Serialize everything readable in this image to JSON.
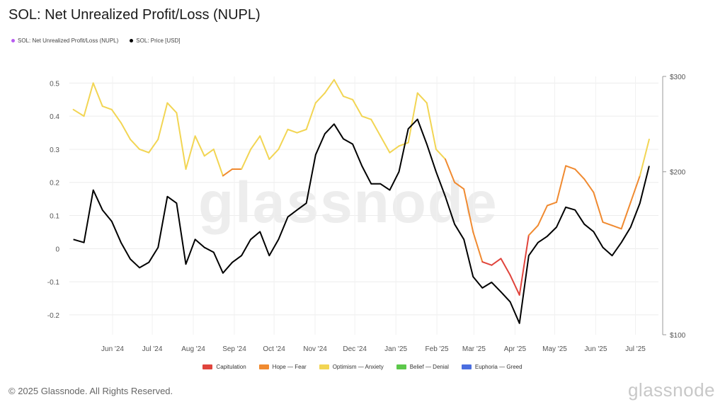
{
  "title": "SOL: Net Unrealized Profit/Loss (NUPL)",
  "legend_top": [
    {
      "label": "SOL: Net Unrealized Profit/Loss (NUPL)",
      "color": "#b85cf0"
    },
    {
      "label": "SOL: Price [USD]",
      "color": "#000000"
    }
  ],
  "legend_bottom": [
    {
      "label": "Capitulation",
      "color": "#e0443c"
    },
    {
      "label": "Hope — Fear",
      "color": "#f08a30"
    },
    {
      "label": "Optimism — Anxiety",
      "color": "#f2d553"
    },
    {
      "label": "Belief — Denial",
      "color": "#5cc84a"
    },
    {
      "label": "Euphoria — Greed",
      "color": "#4a6ee0"
    }
  ],
  "watermark": "glassnode",
  "footer": "© 2025 Glassnode. All Rights Reserved.",
  "logo": "glassnode",
  "chart_data": {
    "type": "line",
    "title": "SOL: Net Unrealized Profit/Loss (NUPL)",
    "x_ticks": [
      "Jun '24",
      "Jul '24",
      "Aug '24",
      "Sep '24",
      "Oct '24",
      "Nov '24",
      "Dec '24",
      "Jan '25",
      "Feb '25",
      "Mar '25",
      "Apr '25",
      "May '25",
      "Jun '25",
      "Jul '25"
    ],
    "y_left_ticks": [
      0.5,
      0.4,
      0.3,
      0.2,
      0.1,
      0,
      -0.1,
      -0.2
    ],
    "y_left_tick_labels": [
      "0.5",
      "0.4",
      "0.3",
      "0.2",
      "0.1",
      "0",
      "-0.1",
      "-0.2"
    ],
    "y_left_range": [
      -0.26,
      0.52
    ],
    "y_right_ticks": [
      300,
      200,
      100
    ],
    "y_right_tick_labels": [
      "$300",
      "$200",
      "$100"
    ],
    "y_right_scale": "log",
    "y_right_range": [
      100,
      300
    ],
    "grid": true,
    "series": [
      {
        "name": "SOL: Net Unrealized Profit/Loss (NUPL)",
        "x": [
          "2024-05-12",
          "2024-05-20",
          "2024-05-27",
          "2024-06-03",
          "2024-06-10",
          "2024-06-17",
          "2024-06-24",
          "2024-07-01",
          "2024-07-08",
          "2024-07-15",
          "2024-07-22",
          "2024-07-29",
          "2024-08-05",
          "2024-08-12",
          "2024-08-19",
          "2024-08-26",
          "2024-09-02",
          "2024-09-09",
          "2024-09-16",
          "2024-09-23",
          "2024-09-30",
          "2024-10-07",
          "2024-10-14",
          "2024-10-21",
          "2024-10-28",
          "2024-11-04",
          "2024-11-11",
          "2024-11-18",
          "2024-11-25",
          "2024-12-02",
          "2024-12-09",
          "2024-12-16",
          "2024-12-23",
          "2024-12-30",
          "2025-01-06",
          "2025-01-13",
          "2025-01-20",
          "2025-01-27",
          "2025-02-03",
          "2025-02-10",
          "2025-02-17",
          "2025-02-24",
          "2025-03-03",
          "2025-03-10",
          "2025-03-17",
          "2025-03-24",
          "2025-03-31",
          "2025-04-07",
          "2025-04-14",
          "2025-04-21",
          "2025-04-28",
          "2025-05-05",
          "2025-05-12",
          "2025-05-19",
          "2025-05-26",
          "2025-06-02",
          "2025-06-09",
          "2025-06-16",
          "2025-06-23",
          "2025-06-30",
          "2025-07-07",
          "2025-07-14",
          "2025-07-21"
        ],
        "values": [
          0.42,
          0.4,
          0.5,
          0.43,
          0.42,
          0.38,
          0.33,
          0.3,
          0.29,
          0.33,
          0.44,
          0.41,
          0.24,
          0.34,
          0.28,
          0.3,
          0.22,
          0.24,
          0.24,
          0.3,
          0.34,
          0.27,
          0.3,
          0.36,
          0.35,
          0.36,
          0.44,
          0.47,
          0.51,
          0.46,
          0.45,
          0.4,
          0.39,
          0.34,
          0.29,
          0.31,
          0.32,
          0.47,
          0.44,
          0.3,
          0.27,
          0.2,
          0.18,
          0.05,
          -0.04,
          -0.05,
          -0.03,
          -0.08,
          -0.14,
          0.04,
          0.07,
          0.13,
          0.14,
          0.25,
          0.24,
          0.21,
          0.17,
          0.08,
          0.07,
          0.06,
          0.14,
          0.22,
          0.33
        ]
      },
      {
        "name": "SOL: Price [USD]",
        "x": [
          "2024-05-12",
          "2024-05-20",
          "2024-05-27",
          "2024-06-03",
          "2024-06-10",
          "2024-06-17",
          "2024-06-24",
          "2024-07-01",
          "2024-07-08",
          "2024-07-15",
          "2024-07-22",
          "2024-07-29",
          "2024-08-05",
          "2024-08-12",
          "2024-08-19",
          "2024-08-26",
          "2024-09-02",
          "2024-09-09",
          "2024-09-16",
          "2024-09-23",
          "2024-09-30",
          "2024-10-07",
          "2024-10-14",
          "2024-10-21",
          "2024-10-28",
          "2024-11-04",
          "2024-11-11",
          "2024-11-18",
          "2024-11-25",
          "2024-12-02",
          "2024-12-09",
          "2024-12-16",
          "2024-12-23",
          "2024-12-30",
          "2025-01-06",
          "2025-01-13",
          "2025-01-20",
          "2025-01-27",
          "2025-02-03",
          "2025-02-10",
          "2025-02-17",
          "2025-02-24",
          "2025-03-03",
          "2025-03-10",
          "2025-03-17",
          "2025-03-24",
          "2025-03-31",
          "2025-04-07",
          "2025-04-14",
          "2025-04-21",
          "2025-04-28",
          "2025-05-05",
          "2025-05-12",
          "2025-05-19",
          "2025-05-26",
          "2025-06-02",
          "2025-06-09",
          "2025-06-16",
          "2025-06-23",
          "2025-06-30",
          "2025-07-07",
          "2025-07-14",
          "2025-07-21"
        ],
        "values": [
          150,
          148,
          185,
          170,
          162,
          148,
          138,
          133,
          136,
          145,
          180,
          175,
          135,
          150,
          145,
          142,
          130,
          136,
          140,
          150,
          155,
          140,
          150,
          165,
          170,
          175,
          215,
          235,
          245,
          230,
          225,
          205,
          190,
          190,
          185,
          200,
          240,
          250,
          225,
          200,
          180,
          160,
          150,
          128,
          122,
          125,
          120,
          115,
          105,
          140,
          148,
          152,
          158,
          172,
          170,
          160,
          155,
          145,
          140,
          148,
          158,
          175,
          205
        ]
      }
    ]
  }
}
